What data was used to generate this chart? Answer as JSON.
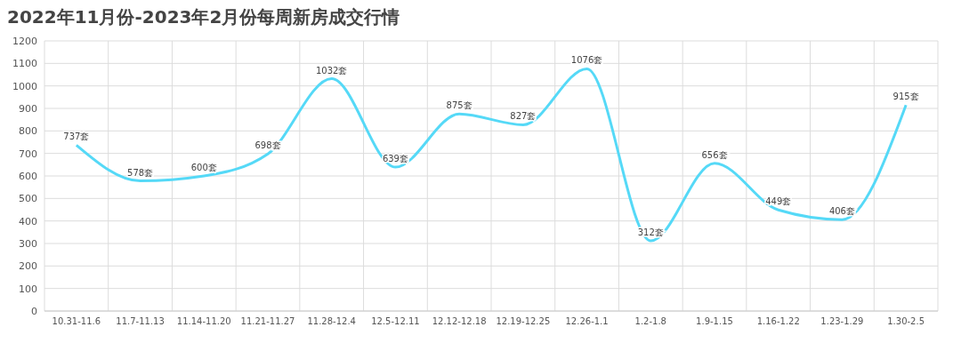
{
  "chart_data": {
    "type": "line",
    "title": "2022年11月份-2023年2月份每周新房成交行情",
    "categories": [
      "10.31-11.6",
      "11.7-11.13",
      "11.14-11.20",
      "11.21-11.27",
      "11.28-12.4",
      "12.5-12.11",
      "12.12-12.18",
      "12.19-12.25",
      "12.26-1.1",
      "1.2-1.8",
      "1.9-1.15",
      "1.16-1.22",
      "1.23-1.29",
      "1.30-2.5"
    ],
    "series": [
      {
        "color": "#55d9f7",
        "values": [
          737,
          578,
          600,
          698,
          1032,
          639,
          875,
          827,
          1076,
          312,
          656,
          449,
          406,
          915
        ],
        "value_labels": [
          "737套",
          "578套",
          "600套",
          "698套",
          "1032套",
          "639套",
          "875套",
          "827套",
          "1076套",
          "312套",
          "656套",
          "449套",
          "406套",
          "915套"
        ]
      }
    ],
    "ylim": [
      0,
      1200
    ],
    "yticks": [
      0,
      100,
      200,
      300,
      400,
      500,
      600,
      700,
      800,
      900,
      1000,
      1100,
      1200
    ],
    "grid": true,
    "marker": "none",
    "line_style": "solid",
    "legend": false
  }
}
